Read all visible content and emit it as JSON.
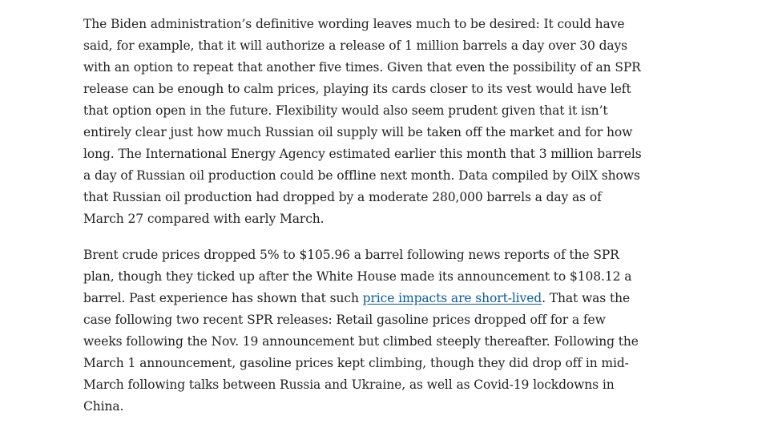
{
  "article": {
    "paragraph_1": "The Biden administration’s definitive wording leaves much to be desired: It could have said, for example, that it will authorize a release of 1 million barrels a day over 30 days with an option to repeat that another five times. Given that even the possibility of an SPR release can be enough to calm prices, playing its cards closer to its vest would have left that option open in the future. Flexibility would also seem prudent given that it isn’t entirely clear just how much Russian oil supply will be taken off the market and for how long. The International Energy Agency estimated earlier this month that 3 million barrels a day of Russian oil production could be offline next month. Data compiled by OilX shows that Russian oil production had dropped by a moderate 280,000 barrels a day as of March 27 compared with early March.",
    "paragraph_2": {
      "before_link": "Brent crude prices dropped 5% to $105.96 a barrel following news reports of the SPR plan, though they ticked up after the White House made its announcement to $108.12 a barrel. Past experience has shown that such ",
      "link_text": "price impacts are short-lived",
      "after_link": ". That was the case following two recent SPR releases: Retail gasoline prices dropped off for a few weeks following the Nov. 19 announcement but climbed steeply thereafter. Following the March 1 announcement, gasoline prices kept climbing, though they did drop off in mid-March following talks between Russia and Ukraine, as well as Covid-19 lockdowns in China."
    }
  },
  "colors": {
    "text": "#222222",
    "link": "#0e5a9e",
    "background": "#ffffff"
  }
}
